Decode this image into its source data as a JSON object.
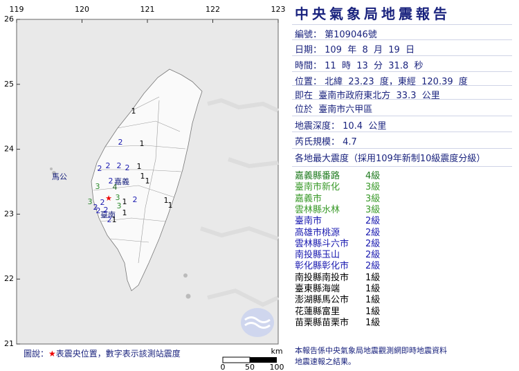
{
  "report": {
    "title": "中央氣象局地震報告",
    "fields": [
      "編號： 第109046號",
      "日期： 109  年  8  月  19  日",
      "時間： 11  時  13  分  31.8  秒",
      "位置： 北緯  23.23  度，東經  120.39  度",
      "即在  臺南市政府東北方  33.3  公里",
      "位於  臺南市六甲區",
      "地震深度： 10.4  公里",
      "芮氏規模： 4.7",
      "各地最大震度（採用109年新制10級震度分級）"
    ],
    "intensities": [
      {
        "name": "嘉義縣番路",
        "level": "4級"
      },
      {
        "name": "臺南市新化",
        "level": "3級"
      },
      {
        "name": "嘉義市",
        "level": "3級"
      },
      {
        "name": "雲林縣水林",
        "level": "3級"
      },
      {
        "name": "臺南市",
        "level": "2級"
      },
      {
        "name": "高雄市桃源",
        "level": "2級"
      },
      {
        "name": "雲林縣斗六市",
        "level": "2級"
      },
      {
        "name": "南投縣玉山",
        "level": "2級"
      },
      {
        "name": "彰化縣彰化市",
        "level": "2級"
      },
      {
        "name": "南投縣南投市",
        "level": "1級"
      },
      {
        "name": "臺東縣海端",
        "level": "1級"
      },
      {
        "name": "澎湖縣馬公市",
        "level": "1級"
      },
      {
        "name": "花蓮縣富里",
        "level": "1級"
      },
      {
        "name": "苗栗縣苗栗市",
        "level": "1級"
      }
    ],
    "footer": [
      "本報告係中央氣象局地震觀測網即時地震資料",
      "地震速報之結果。"
    ]
  },
  "map": {
    "xticks": [
      119,
      120,
      121,
      122,
      123
    ],
    "yticks": [
      21,
      22,
      23,
      24,
      25,
      26
    ],
    "places": [
      "馬公",
      "嘉義",
      "臺南"
    ],
    "stations": [
      1,
      2,
      1,
      2,
      2,
      2,
      2,
      1,
      2,
      4,
      3,
      1,
      1,
      3,
      2,
      3,
      2,
      1,
      2,
      3,
      2,
      2,
      2,
      1,
      1,
      1,
      1
    ],
    "legend": {
      "label": "圖說：",
      "symbol": "★",
      "text": "表震央位置，數字表示該測站震度"
    },
    "scale": {
      "unit": "km",
      "ticks": [
        0,
        50,
        100
      ]
    }
  }
}
